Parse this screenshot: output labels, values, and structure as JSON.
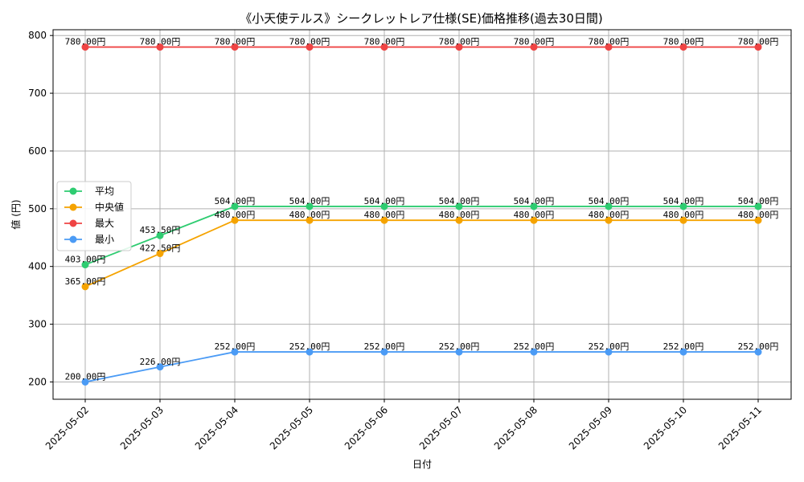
{
  "chart_data": {
    "type": "line",
    "title": "《小天使テルス》シークレットレア仕様(SE)価格推移(過去30日間)",
    "xlabel": "日付",
    "ylabel": "値 (円)",
    "categories": [
      "2025-05-02",
      "2025-05-03",
      "2025-05-04",
      "2025-05-05",
      "2025-05-06",
      "2025-05-07",
      "2025-05-08",
      "2025-05-09",
      "2025-05-10",
      "2025-05-11"
    ],
    "yticks": [
      200,
      300,
      400,
      500,
      600,
      700,
      800
    ],
    "ylim": [
      170,
      810
    ],
    "grid": true,
    "legend_position": "center-left",
    "series": [
      {
        "name": "平均",
        "color": "#2ecc71",
        "values": [
          403,
          453.5,
          504,
          504,
          504,
          504,
          504,
          504,
          504,
          504
        ],
        "labels": [
          "403.00円",
          "453.50円",
          "504.00円",
          "504.00円",
          "504.00円",
          "504.00円",
          "504.00円",
          "504.00円",
          "504.00円",
          "504.00円"
        ]
      },
      {
        "name": "中央値",
        "color": "#f5a300",
        "values": [
          365,
          422.5,
          480,
          480,
          480,
          480,
          480,
          480,
          480,
          480
        ],
        "labels": [
          "365.00円",
          "422.50円",
          "480.00円",
          "480.00円",
          "480.00円",
          "480.00円",
          "480.00円",
          "480.00円",
          "480.00円",
          "480.00円"
        ]
      },
      {
        "name": "最大",
        "color": "#ef4444",
        "values": [
          780,
          780,
          780,
          780,
          780,
          780,
          780,
          780,
          780,
          780
        ],
        "labels": [
          "780.00円",
          "780.00円",
          "780.00円",
          "780.00円",
          "780.00円",
          "780.00円",
          "780.00円",
          "780.00円",
          "780.00円",
          "780.00円"
        ]
      },
      {
        "name": "最小",
        "color": "#4b9bf5",
        "values": [
          200,
          226,
          252,
          252,
          252,
          252,
          252,
          252,
          252,
          252
        ],
        "labels": [
          "200.00円",
          "226.00円",
          "252.00円",
          "252.00円",
          "252.00円",
          "252.00円",
          "252.00円",
          "252.00円",
          "252.00円",
          "252.00円"
        ]
      }
    ]
  }
}
